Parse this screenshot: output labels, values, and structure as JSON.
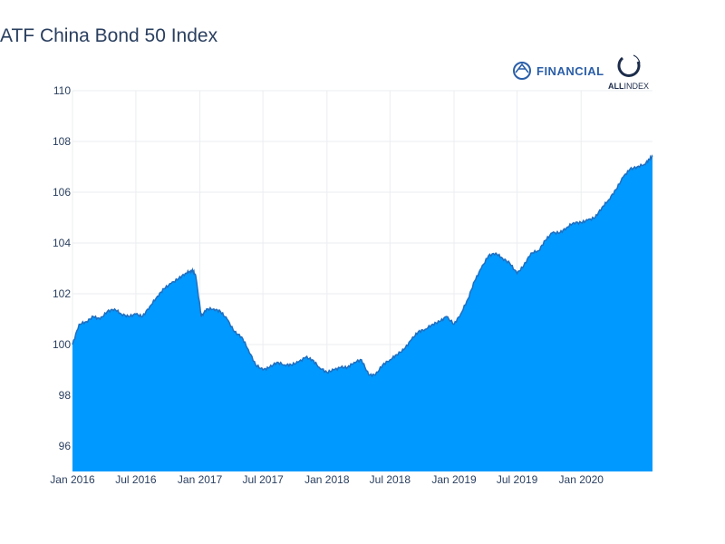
{
  "chart_data": {
    "type": "area",
    "title": "ATF China Bond 50 Index",
    "xlabel": "",
    "ylabel": "",
    "x_ticks": [
      "Jan 2016",
      "Jul 2016",
      "Jan 2017",
      "Jul 2017",
      "Jan 2018",
      "Jul 2018",
      "Jan 2019",
      "Jul 2019",
      "Jan 2020"
    ],
    "y_ticks": [
      96,
      98,
      100,
      102,
      104,
      106,
      108,
      110
    ],
    "xlim": [
      "2016-01-01",
      "2020-07-24"
    ],
    "ylim": [
      95,
      110
    ],
    "grid": true,
    "legend": "none",
    "fill_color": "#0099ff",
    "line_color": "#1f6fc0",
    "series": [
      {
        "x": [
          "2016-01-01",
          "2016-01-20",
          "2016-02-10",
          "2016-03-01",
          "2016-03-20",
          "2016-04-10",
          "2016-05-01",
          "2016-05-20",
          "2016-06-10",
          "2016-07-01",
          "2016-07-20",
          "2016-08-10",
          "2016-09-01",
          "2016-09-20",
          "2016-10-10",
          "2016-11-01",
          "2016-11-20",
          "2016-12-05",
          "2016-12-12",
          "2016-12-20",
          "2017-01-05",
          "2017-01-20",
          "2017-02-10",
          "2017-03-01",
          "2017-03-20",
          "2017-04-10",
          "2017-05-01",
          "2017-05-20",
          "2017-06-10",
          "2017-07-01",
          "2017-07-20",
          "2017-08-10",
          "2017-09-01",
          "2017-09-20",
          "2017-10-10",
          "2017-11-01",
          "2017-11-20",
          "2017-12-10",
          "2018-01-01",
          "2018-01-20",
          "2018-02-10",
          "2018-03-01",
          "2018-03-20",
          "2018-04-10",
          "2018-05-01",
          "2018-05-20",
          "2018-06-10",
          "2018-07-01",
          "2018-07-20",
          "2018-08-10",
          "2018-09-01",
          "2018-09-20",
          "2018-10-10",
          "2018-11-01",
          "2018-11-20",
          "2018-12-10",
          "2019-01-01",
          "2019-01-20",
          "2019-02-10",
          "2019-03-01",
          "2019-03-20",
          "2019-04-10",
          "2019-05-01",
          "2019-05-20",
          "2019-06-10",
          "2019-07-01",
          "2019-07-20",
          "2019-08-10",
          "2019-09-01",
          "2019-09-20",
          "2019-10-10",
          "2019-11-01",
          "2019-11-20",
          "2019-12-10",
          "2020-01-01",
          "2020-01-20",
          "2020-02-10",
          "2020-03-01",
          "2020-03-20",
          "2020-04-10",
          "2020-05-01",
          "2020-05-20",
          "2020-06-10",
          "2020-07-01",
          "2020-07-15",
          "2020-07-24"
        ],
        "values": [
          100.0,
          100.8,
          100.9,
          101.1,
          101.0,
          101.3,
          101.4,
          101.2,
          101.1,
          101.2,
          101.1,
          101.5,
          101.9,
          102.2,
          102.4,
          102.6,
          102.8,
          102.9,
          102.9,
          102.7,
          101.1,
          101.4,
          101.4,
          101.3,
          101.0,
          100.5,
          100.3,
          99.8,
          99.2,
          99.0,
          99.1,
          99.3,
          99.2,
          99.2,
          99.3,
          99.5,
          99.4,
          99.1,
          98.9,
          99.0,
          99.1,
          99.1,
          99.3,
          99.4,
          98.8,
          98.8,
          99.2,
          99.4,
          99.6,
          99.8,
          100.2,
          100.5,
          100.6,
          100.8,
          100.9,
          101.1,
          100.8,
          101.2,
          101.8,
          102.5,
          103.0,
          103.5,
          103.6,
          103.4,
          103.2,
          102.8,
          103.1,
          103.6,
          103.7,
          104.1,
          104.4,
          104.4,
          104.6,
          104.8,
          104.8,
          104.9,
          105.0,
          105.4,
          105.7,
          106.1,
          106.6,
          106.9,
          107.0,
          107.1,
          107.3,
          107.4
        ]
      }
    ]
  },
  "logos": {
    "financial_text": "FINANCIAL",
    "allindex_bold": "ALL",
    "allindex_light": "INDEX",
    "financial_color": "#2a5ea8",
    "allindex_color": "#1c2c4a"
  }
}
